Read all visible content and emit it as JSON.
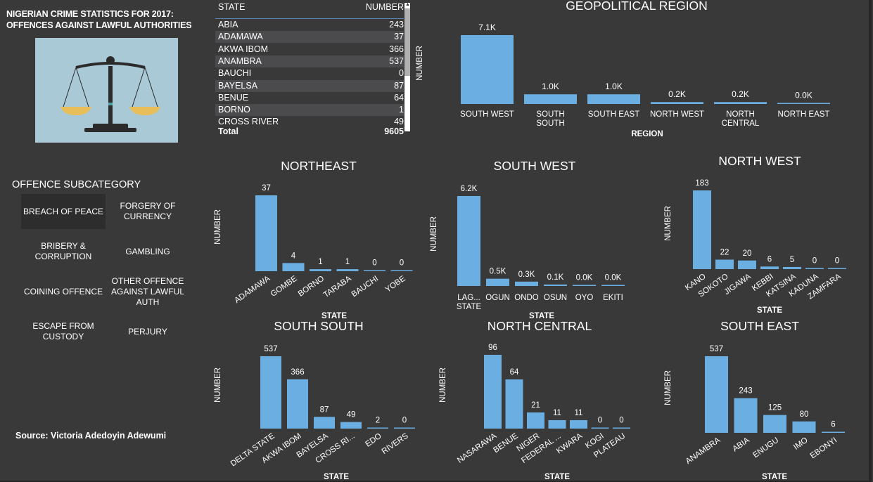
{
  "title": "NIGERIAN CRIME STATISTICS FOR 2017: OFFENCES AGAINST LAWFUL  AUTHORITIES",
  "source": "Source: Victoria Adedoyin Adewumi",
  "table": {
    "headers": {
      "state": "STATE",
      "number": "NUMBER"
    },
    "rows": [
      {
        "state": "ABIA",
        "number": "243"
      },
      {
        "state": "ADAMAWA",
        "number": "37"
      },
      {
        "state": "AKWA IBOM",
        "number": "366"
      },
      {
        "state": "ANAMBRA",
        "number": "537"
      },
      {
        "state": "BAUCHI",
        "number": "0"
      },
      {
        "state": "BAYELSA",
        "number": "87"
      },
      {
        "state": "BENUE",
        "number": "64"
      },
      {
        "state": "BORNO",
        "number": "1"
      },
      {
        "state": "CROSS RIVER",
        "number": "49"
      }
    ],
    "total": {
      "state": "Total",
      "number": "9605"
    }
  },
  "slicer": {
    "title": "OFFENCE SUBCATEGORY",
    "items": [
      {
        "label": "BREACH OF PEACE",
        "selected": true
      },
      {
        "label": "FORGERY OF CURRENCY",
        "selected": false
      },
      {
        "label": "BRIBERY & CORRUPTION",
        "selected": false
      },
      {
        "label": "GAMBLING",
        "selected": false
      },
      {
        "label": "COINING OFFENCE",
        "selected": false
      },
      {
        "label": "OTHER OFFENCE AGAINST LAWFUL AUTH",
        "selected": false
      },
      {
        "label": "ESCAPE FROM CUSTODY",
        "selected": false
      },
      {
        "label": "PERJURY",
        "selected": false
      }
    ]
  },
  "colors": {
    "bar": "#6aaee2",
    "background": "#39393a"
  },
  "chart_data": [
    {
      "id": "geo",
      "type": "bar",
      "title": "GEOPOLITICAL REGION",
      "xlabel": "REGION",
      "ylabel": "NUMBER",
      "categories": [
        "SOUTH WEST",
        "SOUTH SOUTH",
        "SOUTH EAST",
        "NORTH WEST",
        "NORTH CENTRAL",
        "NORTH EAST"
      ],
      "values": [
        7100,
        1000,
        1000,
        200,
        200,
        40
      ],
      "data_labels": [
        "7.1K",
        "1.0K",
        "1.0K",
        "0.2K",
        "0.2K",
        "0.0K"
      ]
    },
    {
      "id": "northeast",
      "type": "bar",
      "title": "NORTHEAST",
      "xlabel": "STATE",
      "ylabel": "NUMBER",
      "categories": [
        "ADAMAWA",
        "GOMBE",
        "BORNO",
        "TARABA",
        "BAUCHI",
        "YOBE"
      ],
      "values": [
        37,
        4,
        1,
        1,
        0,
        0
      ],
      "data_labels": [
        "37",
        "4",
        "1",
        "1",
        "0",
        "0"
      ]
    },
    {
      "id": "southwest",
      "type": "bar",
      "title": "SOUTH WEST",
      "xlabel": "STATE",
      "ylabel": "NUMBER",
      "categories": [
        "LAG... STATE",
        "OGUN",
        "ONDO",
        "OSUN",
        "OYO",
        "EKITI"
      ],
      "values": [
        6200,
        500,
        300,
        100,
        30,
        0
      ],
      "data_labels": [
        "6.2K",
        "0.5K",
        "0.3K",
        "0.1K",
        "0.0K",
        "0.0K"
      ]
    },
    {
      "id": "northwest",
      "type": "bar",
      "title": "NORTH WEST",
      "xlabel": "STATE",
      "ylabel": "NUMBER",
      "categories": [
        "KANO",
        "SOKOTO",
        "JIGAWA",
        "KEBBI",
        "KATSINA",
        "KADUNA",
        "ZAMFARA"
      ],
      "values": [
        183,
        22,
        20,
        6,
        5,
        0,
        0
      ],
      "data_labels": [
        "183",
        "22",
        "20",
        "6",
        "5",
        "0",
        "0"
      ]
    },
    {
      "id": "southsouth",
      "type": "bar",
      "title": "SOUTH SOUTH",
      "xlabel": "STATE",
      "ylabel": "NUMBER",
      "categories": [
        "DELTA STATE",
        "AKWA IBOM",
        "BAYELSA",
        "CROSS RI...",
        "EDO",
        "RIVERS"
      ],
      "values": [
        537,
        366,
        87,
        49,
        2,
        0
      ],
      "data_labels": [
        "537",
        "366",
        "87",
        "49",
        "2",
        "0"
      ]
    },
    {
      "id": "northcentral",
      "type": "bar",
      "title": "NORTH CENTRAL",
      "xlabel": "STATE",
      "ylabel": "NUMBER",
      "categories": [
        "NASARAWA",
        "BENUE",
        "NIGER",
        "FEDERAL ...",
        "KWARA",
        "KOGI",
        "PLATEAU"
      ],
      "values": [
        96,
        64,
        21,
        11,
        11,
        0,
        0
      ],
      "data_labels": [
        "96",
        "64",
        "21",
        "11",
        "11",
        "0",
        "0"
      ]
    },
    {
      "id": "southeast",
      "type": "bar",
      "title": "SOUTH EAST",
      "xlabel": "STATE",
      "ylabel": "NUMBER",
      "categories": [
        "ANAMBRA",
        "ABIA",
        "ENUGU",
        "IMO",
        "EBONYI"
      ],
      "values": [
        537,
        243,
        125,
        80,
        6
      ],
      "data_labels": [
        "537",
        "243",
        "125",
        "80",
        "6"
      ]
    }
  ]
}
